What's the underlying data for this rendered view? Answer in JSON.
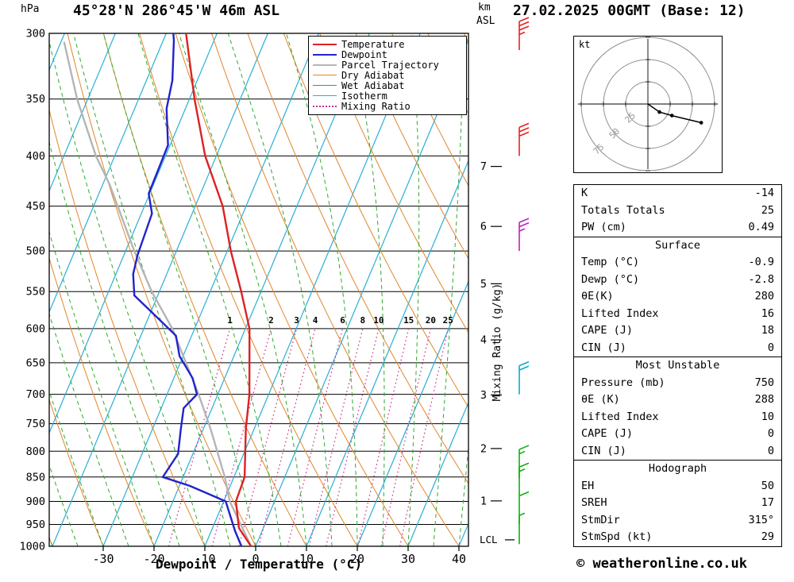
{
  "header": {
    "pressure_unit": "hPa",
    "title": "45°28'N 286°45'W 46m ASL",
    "km_label": "km",
    "asl_label": "ASL",
    "datetime": "27.02.2025 00GMT (Base: 12)"
  },
  "axes": {
    "x_label": "Dewpoint / Temperature (°C)",
    "mixing_ratio_axis": "Mixing Ratio (g/kg)",
    "pressure_ticks": [
      300,
      350,
      400,
      450,
      500,
      550,
      600,
      650,
      700,
      750,
      800,
      850,
      900,
      950,
      1000
    ],
    "temp_ticks": [
      -30,
      -20,
      -10,
      0,
      10,
      20,
      30,
      40
    ],
    "km_marks": [
      {
        "km": "7",
        "p": 410
      },
      {
        "km": "6",
        "p": 472
      },
      {
        "km": "5",
        "p": 540
      },
      {
        "km": "4",
        "p": 616
      },
      {
        "km": "3",
        "p": 701
      },
      {
        "km": "2",
        "p": 795
      },
      {
        "km": "1",
        "p": 899
      }
    ],
    "lcl_label": "LCL",
    "lcl_pressure": 985
  },
  "legend": [
    {
      "label": "Temperature",
      "color": "#dd2222",
      "style": "solid",
      "width": 2.5
    },
    {
      "label": "Dewpoint",
      "color": "#2222cc",
      "style": "solid",
      "width": 2.5
    },
    {
      "label": "Parcel Trajectory",
      "color": "#b5b5b5",
      "style": "solid",
      "width": 2.5
    },
    {
      "label": "Dry Adiabat",
      "color": "#e1862c",
      "style": "solid",
      "width": 1.5
    },
    {
      "label": "Wet Adiabat",
      "color": "#2eaa2e",
      "style": "solid",
      "width": 1.5
    },
    {
      "label": "Isotherm",
      "color": "#29aed6",
      "style": "solid",
      "width": 1.5
    },
    {
      "label": "Mixing Ratio",
      "color": "#d02d8c",
      "style": "dotted",
      "width": 2
    }
  ],
  "chart_data": {
    "type": "skewt-log-p-sounding",
    "pressure_range_hpa": [
      300,
      1000
    ],
    "temp_axis_range_c": [
      -40,
      42
    ],
    "isotherms_c": {
      "min": -90,
      "max": 40,
      "step": 10
    },
    "dry_adiabats_c": {
      "min": -40,
      "max": 130,
      "step": 10
    },
    "wet_adiabats_c": {
      "min": -40,
      "max": 40,
      "step": 5
    },
    "mixing_ratio_gkg": [
      1,
      2,
      3,
      4,
      6,
      8,
      10,
      15,
      20,
      25
    ],
    "mixing_ratio_top_hpa": 600,
    "temperature_profile": [
      [
        1000,
        -0.9
      ],
      [
        958,
        -4.8
      ],
      [
        900,
        -7.6
      ],
      [
        850,
        -7.9
      ],
      [
        760,
        -11.6
      ],
      [
        700,
        -13.8
      ],
      [
        628,
        -17.6
      ],
      [
        600,
        -19.2
      ],
      [
        550,
        -23.9
      ],
      [
        500,
        -29.3
      ],
      [
        450,
        -34.6
      ],
      [
        400,
        -42.2
      ],
      [
        350,
        -49.0
      ],
      [
        300,
        -56.1
      ]
    ],
    "dewpoint_profile": [
      [
        1000,
        -2.8
      ],
      [
        965,
        -5.3
      ],
      [
        900,
        -9.6
      ],
      [
        868,
        -17.9
      ],
      [
        850,
        -24.0
      ],
      [
        805,
        -22.9
      ],
      [
        760,
        -24.4
      ],
      [
        723,
        -25.6
      ],
      [
        700,
        -24.1
      ],
      [
        674,
        -26.3
      ],
      [
        640,
        -30.7
      ],
      [
        610,
        -33.1
      ],
      [
        583,
        -38.6
      ],
      [
        555,
        -44.6
      ],
      [
        528,
        -46.6
      ],
      [
        505,
        -47.3
      ],
      [
        458,
        -47.9
      ],
      [
        437,
        -50.2
      ],
      [
        390,
        -50.4
      ],
      [
        358,
        -53.7
      ],
      [
        335,
        -54.9
      ],
      [
        305,
        -57.9
      ],
      [
        300,
        -58.6
      ]
    ],
    "parcel_profile": [
      [
        1000,
        -0.9
      ],
      [
        900,
        -8.8
      ],
      [
        850,
        -11.8
      ],
      [
        760,
        -18.5
      ],
      [
        700,
        -23.8
      ],
      [
        600,
        -34.4
      ],
      [
        550,
        -41.5
      ],
      [
        500,
        -48.3
      ],
      [
        428,
        -58.6
      ],
      [
        400,
        -63.7
      ],
      [
        350,
        -72.1
      ],
      [
        306,
        -79.4
      ]
    ],
    "wind_barbs": [
      {
        "p": 312,
        "speed": 35,
        "color": "#e82222"
      },
      {
        "p": 400,
        "speed": 30,
        "color": "#e82222"
      },
      {
        "p": 500,
        "speed": 25,
        "color": "#c020c0"
      },
      {
        "p": 700,
        "speed": 20,
        "color": "#10a8cc"
      },
      {
        "p": 852,
        "speed": 15,
        "color": "#10b010"
      },
      {
        "p": 888,
        "speed": 15,
        "color": "#10b010"
      },
      {
        "p": 950,
        "speed": 10,
        "color": "#10b010"
      },
      {
        "p": 995,
        "speed": 5,
        "color": "#10b010"
      }
    ]
  },
  "hodograph": {
    "unit": "kt",
    "rings_kt": [
      25,
      50,
      75
    ],
    "trace_kt": [
      [
        0,
        0
      ],
      [
        13,
        9
      ],
      [
        27,
        13
      ],
      [
        60,
        21
      ]
    ]
  },
  "stats": {
    "sections": [
      {
        "header": null,
        "rows": [
          [
            "K",
            "-14"
          ],
          [
            "Totals Totals",
            "25"
          ],
          [
            "PW (cm)",
            "0.49"
          ]
        ]
      },
      {
        "header": "Surface",
        "rows": [
          [
            "Temp (°C)",
            "-0.9"
          ],
          [
            "Dewp (°C)",
            "-2.8"
          ],
          [
            "θE(K)",
            "280"
          ],
          [
            "Lifted Index",
            "16"
          ],
          [
            "CAPE (J)",
            "18"
          ],
          [
            "CIN (J)",
            "0"
          ]
        ]
      },
      {
        "header": "Most Unstable",
        "rows": [
          [
            "Pressure (mb)",
            "750"
          ],
          [
            "θE (K)",
            "288"
          ],
          [
            "Lifted Index",
            "10"
          ],
          [
            "CAPE (J)",
            "0"
          ],
          [
            "CIN (J)",
            "0"
          ]
        ]
      },
      {
        "header": "Hodograph",
        "rows": [
          [
            "EH",
            "50"
          ],
          [
            "SREH",
            "17"
          ],
          [
            "StmDir",
            "315°"
          ],
          [
            "StmSpd (kt)",
            "29"
          ]
        ]
      }
    ]
  },
  "footer": {
    "copyright": "© weatheronline.co.uk"
  }
}
